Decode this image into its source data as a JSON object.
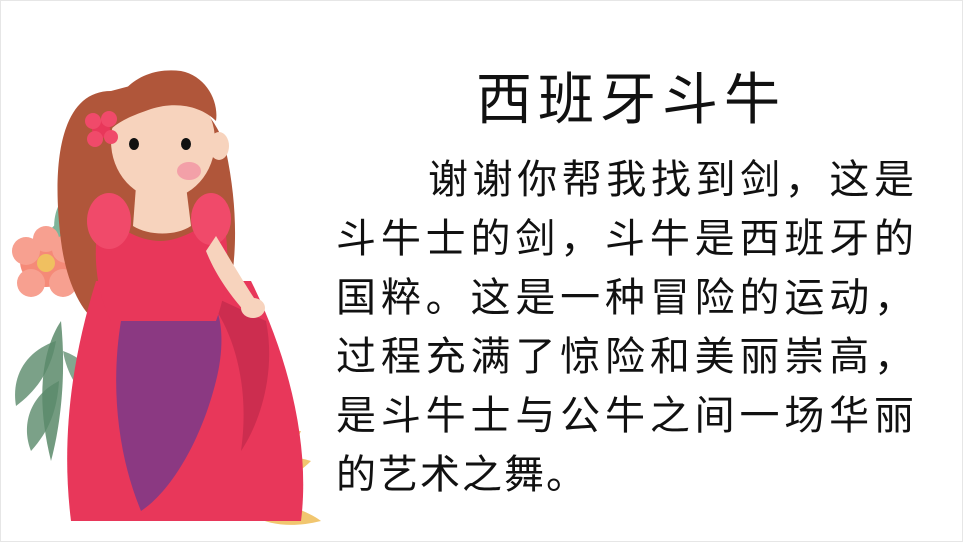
{
  "slide": {
    "title": "西班牙斗牛",
    "paragraph": "谢谢你帮我找到剑，这是斗牛士的剑，斗牛是西班牙的国粹。这是一种冒险的运动，过程充满了惊险和美丽崇高，是斗牛士与公牛之间一场华丽的艺术之舞。"
  },
  "colors": {
    "dress": "#e8375a",
    "dress_shadow": "#7a3a8a",
    "hair": "#b0563a",
    "skin": "#f7d3bd",
    "cheek": "#f3a0a8",
    "leaf_green": "#5a8a6a",
    "leaf_gold": "#f0c060",
    "flower": "#f58a78"
  },
  "icons": {
    "illustration": "girl-in-red-dress-illustration"
  }
}
